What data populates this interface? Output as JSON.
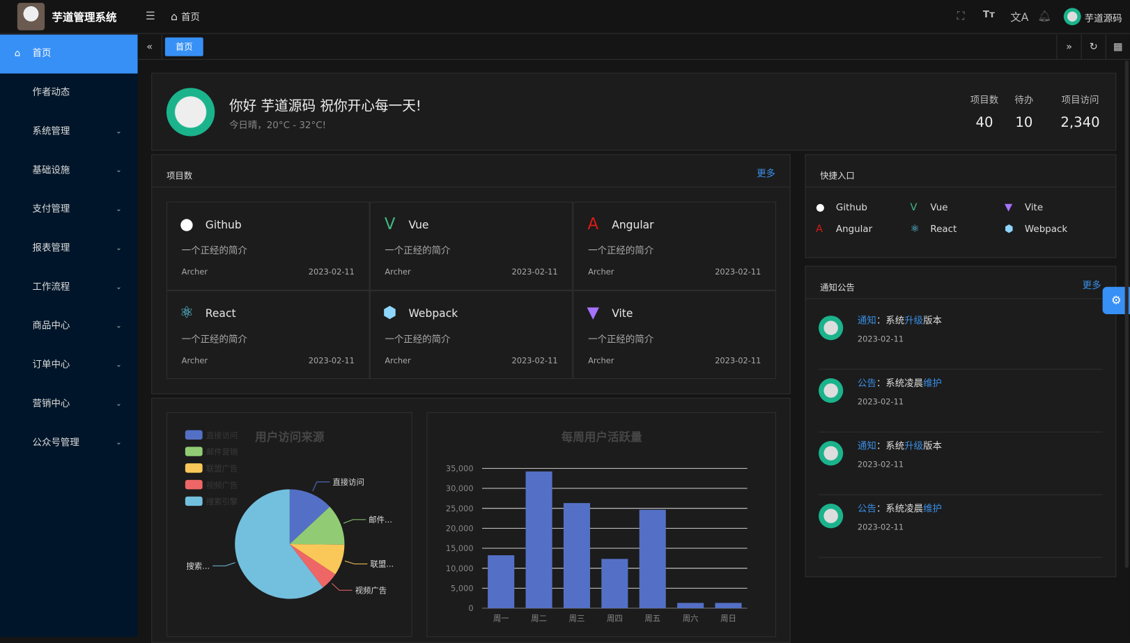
{
  "header": {
    "app_title": "芋道管理系统",
    "breadcrumb": "首页",
    "user_name": "芋道源码",
    "icons": [
      "menu-fold-icon",
      "home-icon",
      "fullscreen-icon",
      "font-size-icon",
      "translate-icon",
      "bell-icon"
    ]
  },
  "sidebar": {
    "items": [
      {
        "label": "首页",
        "active": true,
        "expandable": false
      },
      {
        "label": "作者动态",
        "expandable": false
      },
      {
        "label": "系统管理",
        "expandable": true
      },
      {
        "label": "基础设施",
        "expandable": true
      },
      {
        "label": "支付管理",
        "expandable": true
      },
      {
        "label": "报表管理",
        "expandable": true
      },
      {
        "label": "工作流程",
        "expandable": true
      },
      {
        "label": "商品中心",
        "expandable": true
      },
      {
        "label": "订单中心",
        "expandable": true
      },
      {
        "label": "营销中心",
        "expandable": true
      },
      {
        "label": "公众号管理",
        "expandable": true
      }
    ]
  },
  "tabs": {
    "items": [
      {
        "label": "首页",
        "active": true
      }
    ]
  },
  "welcome": {
    "greeting": "你好 芋道源码 祝你开心每一天!",
    "weather": "今日晴，20°C - 32°C!",
    "stats": [
      {
        "label": "项目数",
        "value": "40"
      },
      {
        "label": "待办",
        "value": "10"
      },
      {
        "label": "项目访问",
        "value": "2,340"
      }
    ]
  },
  "projects": {
    "title": "项目数",
    "more": "更多",
    "items": [
      {
        "name": "Github",
        "icon": "github-icon",
        "color": "#ffffff",
        "desc": "一个正经的简介",
        "author": "Archer",
        "date": "2023-02-11"
      },
      {
        "name": "Vue",
        "icon": "vue-icon",
        "color": "#42b883",
        "desc": "一个正经的简介",
        "author": "Archer",
        "date": "2023-02-11"
      },
      {
        "name": "Angular",
        "icon": "angular-icon",
        "color": "#dd1b16",
        "desc": "一个正经的简介",
        "author": "Archer",
        "date": "2023-02-11"
      },
      {
        "name": "React",
        "icon": "react-icon",
        "color": "#61dafb",
        "desc": "一个正经的简介",
        "author": "Archer",
        "date": "2023-02-11"
      },
      {
        "name": "Webpack",
        "icon": "webpack-icon",
        "color": "#8ed6fb",
        "desc": "一个正经的简介",
        "author": "Archer",
        "date": "2023-02-11"
      },
      {
        "name": "Vite",
        "icon": "vite-icon",
        "color": "#a672ff",
        "desc": "一个正经的简介",
        "author": "Archer",
        "date": "2023-02-11"
      }
    ]
  },
  "shortcuts": {
    "title": "快捷入口",
    "items": [
      {
        "name": "Github",
        "icon": "github-icon"
      },
      {
        "name": "Vue",
        "icon": "vue-icon"
      },
      {
        "name": "Vite",
        "icon": "vite-icon"
      },
      {
        "name": "Angular",
        "icon": "angular-icon"
      },
      {
        "name": "React",
        "icon": "react-icon"
      },
      {
        "name": "Webpack",
        "icon": "webpack-icon"
      }
    ]
  },
  "notices": {
    "title": "通知公告",
    "more": "更多",
    "items": [
      {
        "type": "通知",
        "pre": "：系统",
        "hl": "升级",
        "post": "版本",
        "date": "2023-02-11"
      },
      {
        "type": "公告",
        "pre": "：系统凌晨",
        "hl": "维护",
        "post": "",
        "date": "2023-02-11"
      },
      {
        "type": "通知",
        "pre": "：系统",
        "hl": "升级",
        "post": "版本",
        "date": "2023-02-11"
      },
      {
        "type": "公告",
        "pre": "：系统凌晨",
        "hl": "维护",
        "post": "",
        "date": "2023-02-11"
      }
    ]
  },
  "chart_data": [
    {
      "type": "pie",
      "title": "用户访问来源",
      "legend_position": "top-left",
      "categories": [
        "直接访问",
        "邮件营销",
        "联盟广告",
        "视频广告",
        "搜索引擎"
      ],
      "slice_labels": [
        "直接访问",
        "邮件...",
        "联盟...",
        "视频广告",
        "搜索..."
      ],
      "values": [
        335,
        310,
        234,
        135,
        1548
      ],
      "colors": [
        "#5470c6",
        "#91cc75",
        "#fac858",
        "#ee6666",
        "#73c0de"
      ]
    },
    {
      "type": "bar",
      "title": "每周用户活跃量",
      "categories": [
        "周一",
        "周二",
        "周三",
        "周四",
        "周五",
        "周六",
        "周日"
      ],
      "values": [
        13253,
        34235,
        26321,
        12340,
        24643,
        1322,
        1324
      ],
      "ylim": [
        0,
        35000
      ],
      "yticks": [
        "0",
        "5,000",
        "10,000",
        "15,000",
        "20,000",
        "25,000",
        "30,000",
        "35,000"
      ],
      "grid": true,
      "color": "#5470c6"
    }
  ]
}
